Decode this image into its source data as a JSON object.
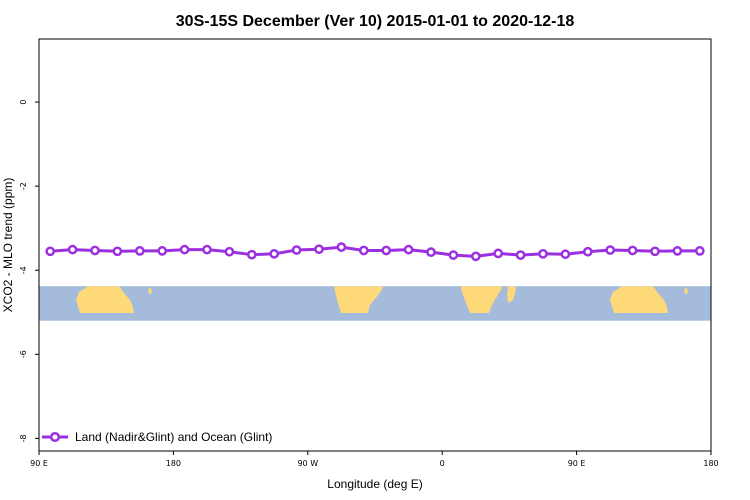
{
  "chart_data": {
    "type": "line",
    "title": "30S-15S December (Ver 10)   2015-01-01 to 2020-12-18",
    "xlabel": "Longitude (deg E)",
    "ylabel": "XCO2 - MLO trend (ppm)",
    "x_ticks": [
      {
        "value": 90,
        "label": "90 E"
      },
      {
        "value": 180,
        "label": "180"
      },
      {
        "value": 270,
        "label": "90 W"
      },
      {
        "value": 360,
        "label": "0"
      },
      {
        "value": 450,
        "label": "90 E"
      },
      {
        "value": 540,
        "label": "180"
      }
    ],
    "y_ticks": [
      0,
      -2,
      -4,
      -6,
      -8
    ],
    "xlim": [
      90,
      540
    ],
    "ylim": [
      -8.3,
      1.5
    ],
    "series": [
      {
        "name": "Land (Nadir&Glint) and Ocean (Glint)",
        "color": "#9b30e0",
        "x": [
          97.5,
          112.5,
          127.5,
          142.5,
          157.5,
          172.5,
          187.5,
          202.5,
          217.5,
          232.5,
          247.5,
          262.5,
          277.5,
          292.5,
          307.5,
          322.5,
          337.5,
          352.5,
          367.5,
          382.5,
          397.5,
          412.5,
          427.5,
          442.5,
          457.5,
          472.5,
          487.5,
          502.5,
          517.5,
          532.5
        ],
        "values": [
          -3.55,
          -3.51,
          -3.53,
          -3.55,
          -3.54,
          -3.54,
          -3.51,
          -3.51,
          -3.56,
          -3.63,
          -3.61,
          -3.52,
          -3.5,
          -3.45,
          -3.53,
          -3.53,
          -3.51,
          -3.57,
          -3.64,
          -3.67,
          -3.6,
          -3.64,
          -3.61,
          -3.62,
          -3.56,
          -3.52,
          -3.53,
          -3.55,
          -3.54,
          -3.54
        ]
      }
    ],
    "map_strip": {
      "y_top": -4.38,
      "y_bottom": -5.2,
      "ocean_color": "#a5bbdb",
      "land_color": "#fdd97a"
    },
    "legend_position": "bottom-left"
  }
}
